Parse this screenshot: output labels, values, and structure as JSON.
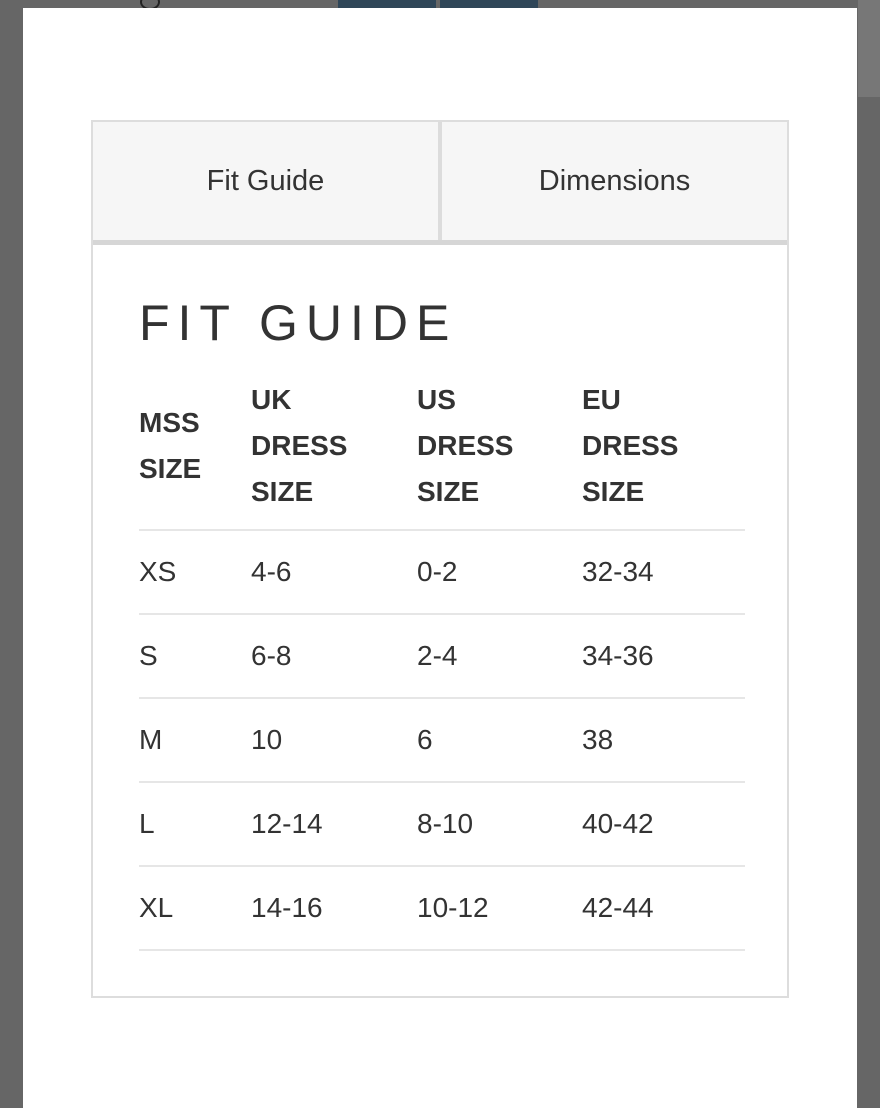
{
  "tabs": [
    {
      "label": "Fit Guide",
      "active": true
    },
    {
      "label": "Dimensions",
      "active": false
    }
  ],
  "title": "FIT GUIDE",
  "table": {
    "headers": [
      [
        "MSS",
        "SIZE"
      ],
      [
        "UK",
        "DRESS",
        "SIZE"
      ],
      [
        "US",
        "DRESS",
        "SIZE"
      ],
      [
        "EU",
        "DRESS",
        "SIZE"
      ]
    ],
    "rows": [
      [
        "XS",
        "4-6",
        "0-2",
        "32-34"
      ],
      [
        "S",
        "6-8",
        "2-4",
        "34-36"
      ],
      [
        "M",
        "10",
        "6",
        "38"
      ],
      [
        "L",
        "12-14",
        "8-10",
        "40-42"
      ],
      [
        "XL",
        "14-16",
        "10-12",
        "42-44"
      ]
    ]
  }
}
